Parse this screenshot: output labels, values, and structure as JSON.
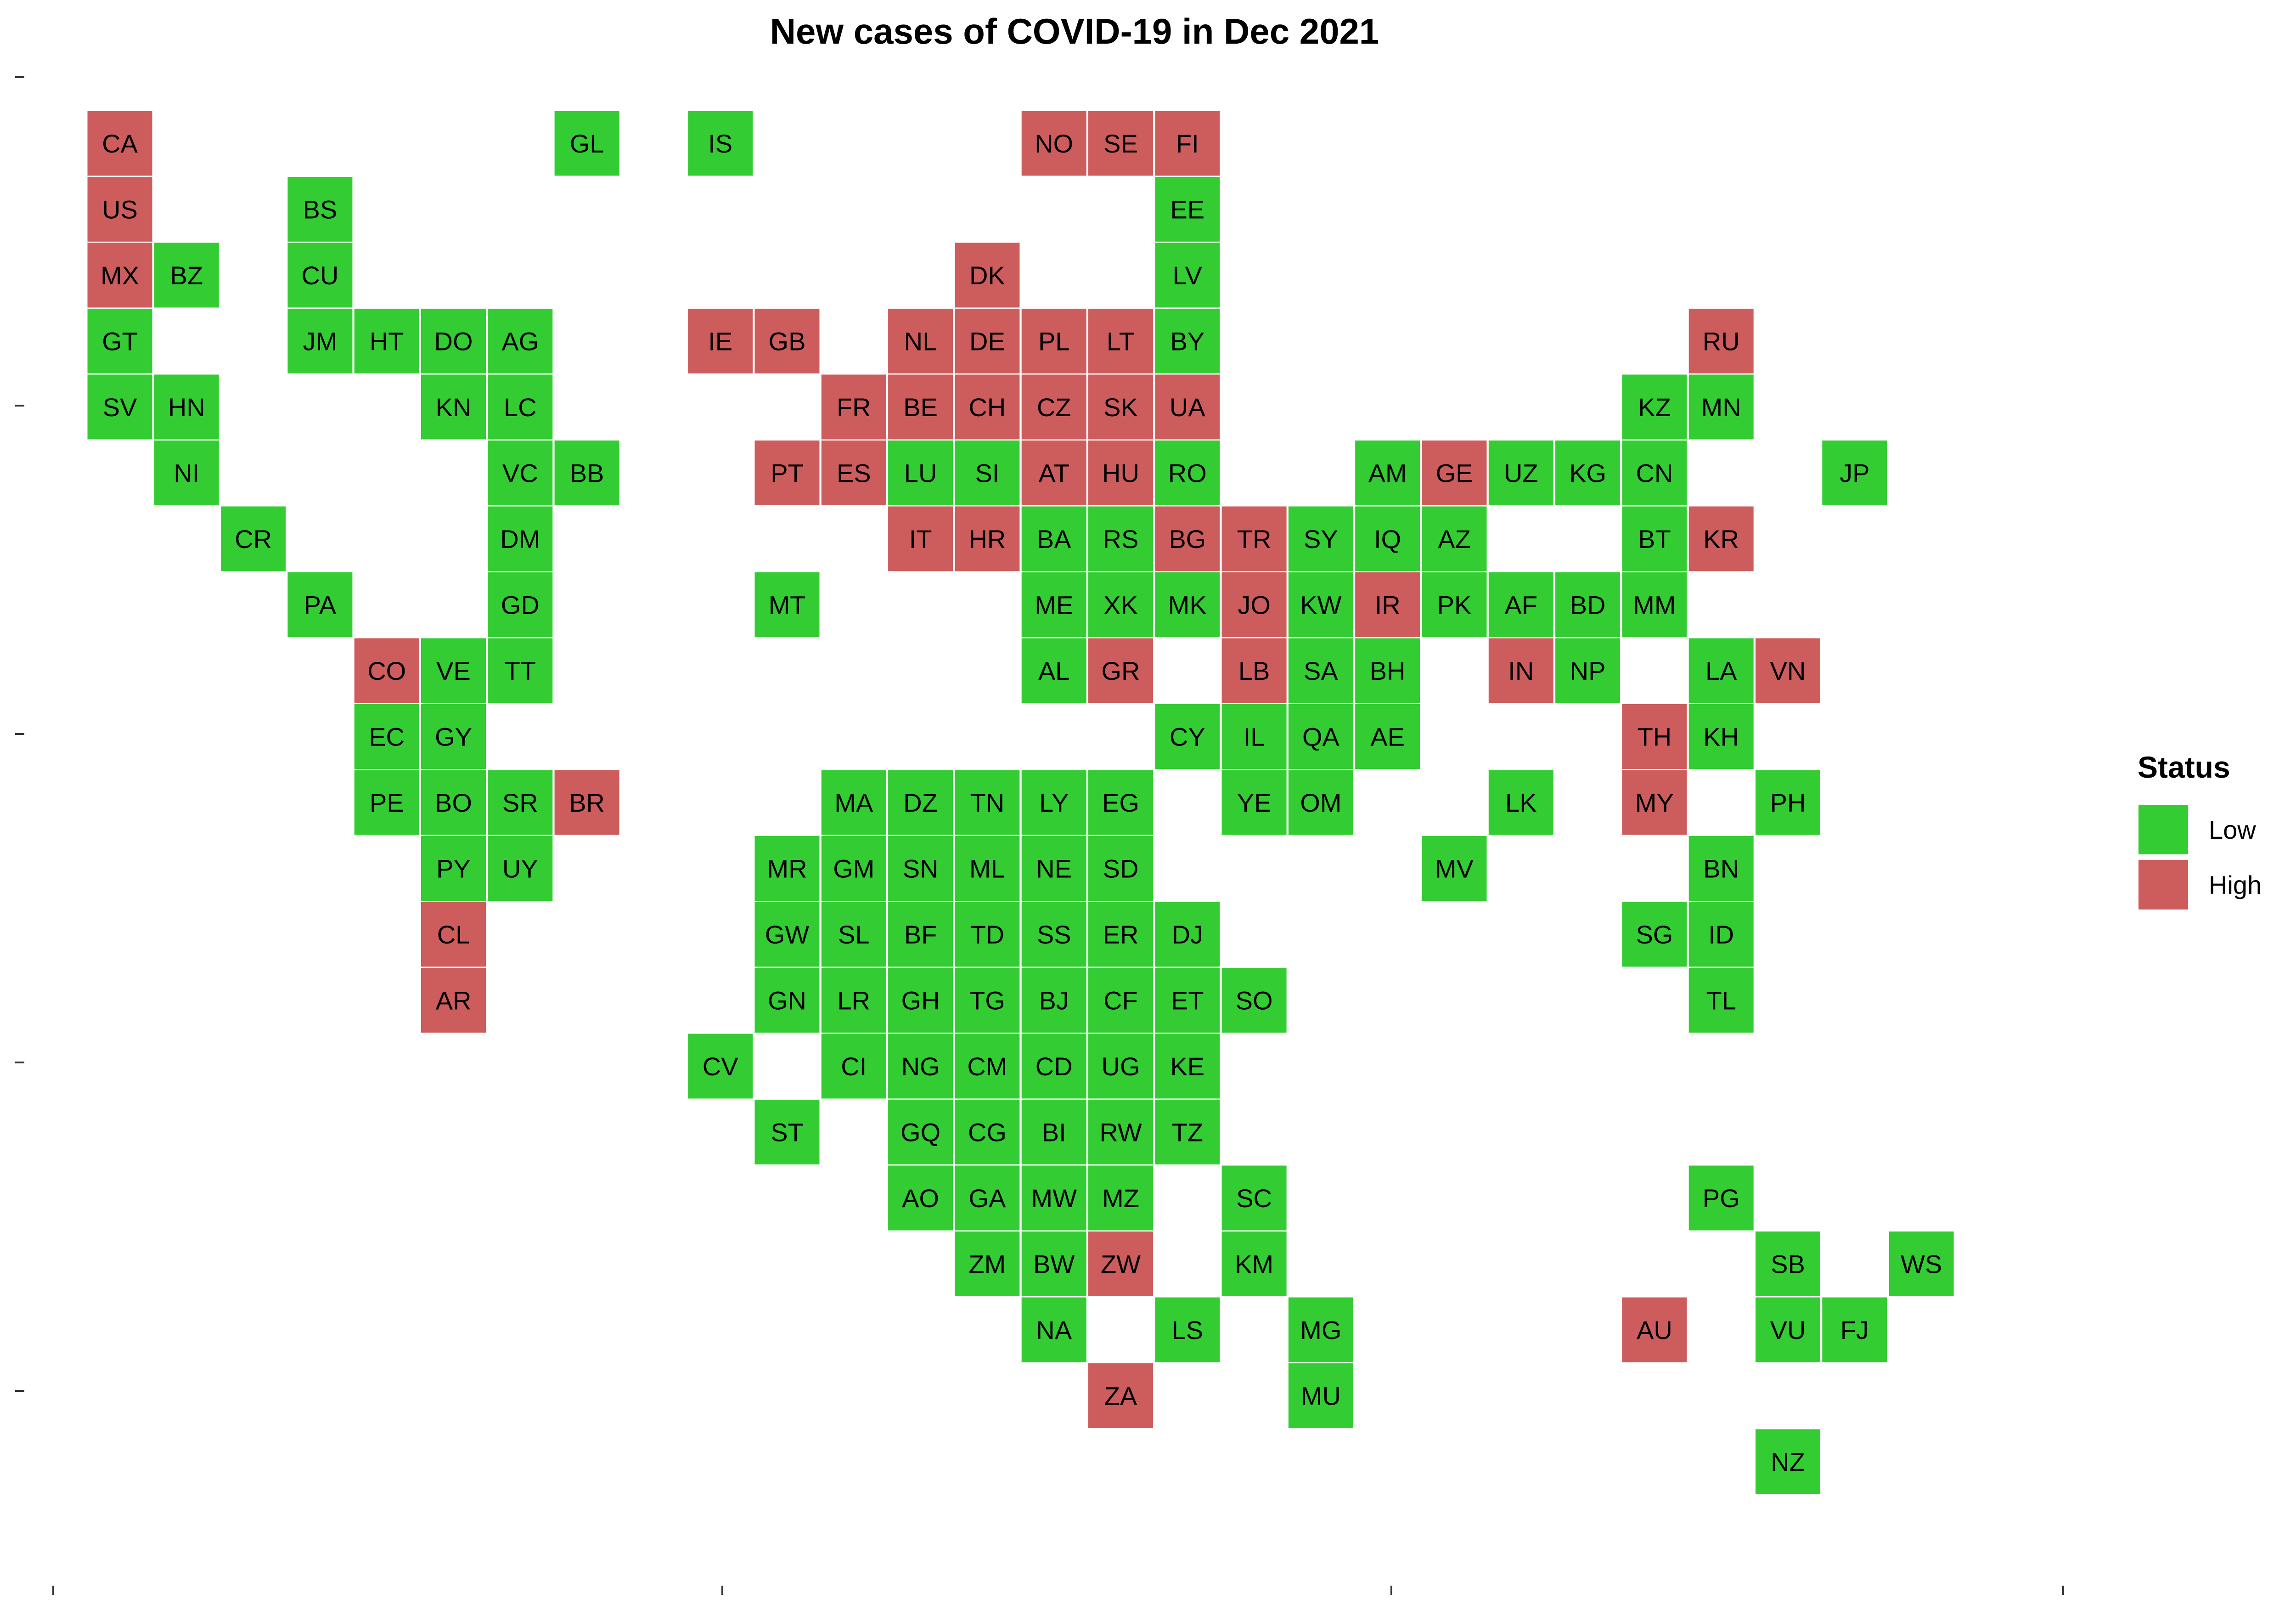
{
  "title": "New cases of COVID-19 in Dec 2021",
  "legend": {
    "title": "Status",
    "items": [
      {
        "label": "Low",
        "color": "#33cc33"
      },
      {
        "label": "High",
        "color": "#cd5c5c"
      }
    ]
  },
  "chart_data": {
    "type": "heatmap",
    "title": "New cases of COVID-19 in Dec 2021",
    "grid": false,
    "legend_position": "right",
    "status_colors": {
      "Low": "#33cc33",
      "High": "#cd5c5c"
    },
    "cells": [
      {
        "code": "CA",
        "col": 1,
        "row": 1,
        "status": "High"
      },
      {
        "code": "GL",
        "col": 8,
        "row": 1,
        "status": "Low"
      },
      {
        "code": "IS",
        "col": 10,
        "row": 1,
        "status": "Low"
      },
      {
        "code": "NO",
        "col": 15,
        "row": 1,
        "status": "High"
      },
      {
        "code": "SE",
        "col": 16,
        "row": 1,
        "status": "High"
      },
      {
        "code": "FI",
        "col": 17,
        "row": 1,
        "status": "High"
      },
      {
        "code": "US",
        "col": 1,
        "row": 2,
        "status": "High"
      },
      {
        "code": "BS",
        "col": 4,
        "row": 2,
        "status": "Low"
      },
      {
        "code": "EE",
        "col": 17,
        "row": 2,
        "status": "Low"
      },
      {
        "code": "MX",
        "col": 1,
        "row": 3,
        "status": "High"
      },
      {
        "code": "BZ",
        "col": 2,
        "row": 3,
        "status": "Low"
      },
      {
        "code": "CU",
        "col": 4,
        "row": 3,
        "status": "Low"
      },
      {
        "code": "DK",
        "col": 14,
        "row": 3,
        "status": "High"
      },
      {
        "code": "LV",
        "col": 17,
        "row": 3,
        "status": "Low"
      },
      {
        "code": "GT",
        "col": 1,
        "row": 4,
        "status": "Low"
      },
      {
        "code": "JM",
        "col": 4,
        "row": 4,
        "status": "Low"
      },
      {
        "code": "HT",
        "col": 5,
        "row": 4,
        "status": "Low"
      },
      {
        "code": "DO",
        "col": 6,
        "row": 4,
        "status": "Low"
      },
      {
        "code": "AG",
        "col": 7,
        "row": 4,
        "status": "Low"
      },
      {
        "code": "IE",
        "col": 10,
        "row": 4,
        "status": "High"
      },
      {
        "code": "GB",
        "col": 11,
        "row": 4,
        "status": "High"
      },
      {
        "code": "NL",
        "col": 13,
        "row": 4,
        "status": "High"
      },
      {
        "code": "DE",
        "col": 14,
        "row": 4,
        "status": "High"
      },
      {
        "code": "PL",
        "col": 15,
        "row": 4,
        "status": "High"
      },
      {
        "code": "LT",
        "col": 16,
        "row": 4,
        "status": "High"
      },
      {
        "code": "BY",
        "col": 17,
        "row": 4,
        "status": "Low"
      },
      {
        "code": "RU",
        "col": 25,
        "row": 4,
        "status": "High"
      },
      {
        "code": "SV",
        "col": 1,
        "row": 5,
        "status": "Low"
      },
      {
        "code": "HN",
        "col": 2,
        "row": 5,
        "status": "Low"
      },
      {
        "code": "KN",
        "col": 6,
        "row": 5,
        "status": "Low"
      },
      {
        "code": "LC",
        "col": 7,
        "row": 5,
        "status": "Low"
      },
      {
        "code": "FR",
        "col": 12,
        "row": 5,
        "status": "High"
      },
      {
        "code": "BE",
        "col": 13,
        "row": 5,
        "status": "High"
      },
      {
        "code": "CH",
        "col": 14,
        "row": 5,
        "status": "High"
      },
      {
        "code": "CZ",
        "col": 15,
        "row": 5,
        "status": "High"
      },
      {
        "code": "SK",
        "col": 16,
        "row": 5,
        "status": "High"
      },
      {
        "code": "UA",
        "col": 17,
        "row": 5,
        "status": "High"
      },
      {
        "code": "KZ",
        "col": 24,
        "row": 5,
        "status": "Low"
      },
      {
        "code": "MN",
        "col": 25,
        "row": 5,
        "status": "Low"
      },
      {
        "code": "NI",
        "col": 2,
        "row": 6,
        "status": "Low"
      },
      {
        "code": "VC",
        "col": 7,
        "row": 6,
        "status": "Low"
      },
      {
        "code": "BB",
        "col": 8,
        "row": 6,
        "status": "Low"
      },
      {
        "code": "PT",
        "col": 11,
        "row": 6,
        "status": "High"
      },
      {
        "code": "ES",
        "col": 12,
        "row": 6,
        "status": "High"
      },
      {
        "code": "LU",
        "col": 13,
        "row": 6,
        "status": "Low"
      },
      {
        "code": "SI",
        "col": 14,
        "row": 6,
        "status": "Low"
      },
      {
        "code": "AT",
        "col": 15,
        "row": 6,
        "status": "High"
      },
      {
        "code": "HU",
        "col": 16,
        "row": 6,
        "status": "High"
      },
      {
        "code": "RO",
        "col": 17,
        "row": 6,
        "status": "Low"
      },
      {
        "code": "AM",
        "col": 20,
        "row": 6,
        "status": "Low"
      },
      {
        "code": "GE",
        "col": 21,
        "row": 6,
        "status": "High"
      },
      {
        "code": "UZ",
        "col": 22,
        "row": 6,
        "status": "Low"
      },
      {
        "code": "KG",
        "col": 23,
        "row": 6,
        "status": "Low"
      },
      {
        "code": "CN",
        "col": 24,
        "row": 6,
        "status": "Low"
      },
      {
        "code": "JP",
        "col": 27,
        "row": 6,
        "status": "Low"
      },
      {
        "code": "CR",
        "col": 3,
        "row": 7,
        "status": "Low"
      },
      {
        "code": "DM",
        "col": 7,
        "row": 7,
        "status": "Low"
      },
      {
        "code": "IT",
        "col": 13,
        "row": 7,
        "status": "High"
      },
      {
        "code": "HR",
        "col": 14,
        "row": 7,
        "status": "High"
      },
      {
        "code": "BA",
        "col": 15,
        "row": 7,
        "status": "Low"
      },
      {
        "code": "RS",
        "col": 16,
        "row": 7,
        "status": "Low"
      },
      {
        "code": "BG",
        "col": 17,
        "row": 7,
        "status": "High"
      },
      {
        "code": "TR",
        "col": 18,
        "row": 7,
        "status": "High"
      },
      {
        "code": "SY",
        "col": 19,
        "row": 7,
        "status": "Low"
      },
      {
        "code": "IQ",
        "col": 20,
        "row": 7,
        "status": "Low"
      },
      {
        "code": "AZ",
        "col": 21,
        "row": 7,
        "status": "Low"
      },
      {
        "code": "BT",
        "col": 24,
        "row": 7,
        "status": "Low"
      },
      {
        "code": "KR",
        "col": 25,
        "row": 7,
        "status": "High"
      },
      {
        "code": "PA",
        "col": 4,
        "row": 8,
        "status": "Low"
      },
      {
        "code": "GD",
        "col": 7,
        "row": 8,
        "status": "Low"
      },
      {
        "code": "MT",
        "col": 11,
        "row": 8,
        "status": "Low"
      },
      {
        "code": "ME",
        "col": 15,
        "row": 8,
        "status": "Low"
      },
      {
        "code": "XK",
        "col": 16,
        "row": 8,
        "status": "Low"
      },
      {
        "code": "MK",
        "col": 17,
        "row": 8,
        "status": "Low"
      },
      {
        "code": "JO",
        "col": 18,
        "row": 8,
        "status": "High"
      },
      {
        "code": "KW",
        "col": 19,
        "row": 8,
        "status": "Low"
      },
      {
        "code": "IR",
        "col": 20,
        "row": 8,
        "status": "High"
      },
      {
        "code": "PK",
        "col": 21,
        "row": 8,
        "status": "Low"
      },
      {
        "code": "AF",
        "col": 22,
        "row": 8,
        "status": "Low"
      },
      {
        "code": "BD",
        "col": 23,
        "row": 8,
        "status": "Low"
      },
      {
        "code": "MM",
        "col": 24,
        "row": 8,
        "status": "Low"
      },
      {
        "code": "CO",
        "col": 5,
        "row": 9,
        "status": "High"
      },
      {
        "code": "VE",
        "col": 6,
        "row": 9,
        "status": "Low"
      },
      {
        "code": "TT",
        "col": 7,
        "row": 9,
        "status": "Low"
      },
      {
        "code": "AL",
        "col": 15,
        "row": 9,
        "status": "Low"
      },
      {
        "code": "GR",
        "col": 16,
        "row": 9,
        "status": "High"
      },
      {
        "code": "LB",
        "col": 18,
        "row": 9,
        "status": "High"
      },
      {
        "code": "SA",
        "col": 19,
        "row": 9,
        "status": "Low"
      },
      {
        "code": "BH",
        "col": 20,
        "row": 9,
        "status": "Low"
      },
      {
        "code": "IN",
        "col": 22,
        "row": 9,
        "status": "High"
      },
      {
        "code": "NP",
        "col": 23,
        "row": 9,
        "status": "Low"
      },
      {
        "code": "LA",
        "col": 25,
        "row": 9,
        "status": "Low"
      },
      {
        "code": "VN",
        "col": 26,
        "row": 9,
        "status": "High"
      },
      {
        "code": "EC",
        "col": 5,
        "row": 10,
        "status": "Low"
      },
      {
        "code": "GY",
        "col": 6,
        "row": 10,
        "status": "Low"
      },
      {
        "code": "CY",
        "col": 17,
        "row": 10,
        "status": "Low"
      },
      {
        "code": "IL",
        "col": 18,
        "row": 10,
        "status": "Low"
      },
      {
        "code": "QA",
        "col": 19,
        "row": 10,
        "status": "Low"
      },
      {
        "code": "AE",
        "col": 20,
        "row": 10,
        "status": "Low"
      },
      {
        "code": "TH",
        "col": 24,
        "row": 10,
        "status": "High"
      },
      {
        "code": "KH",
        "col": 25,
        "row": 10,
        "status": "Low"
      },
      {
        "code": "PE",
        "col": 5,
        "row": 11,
        "status": "Low"
      },
      {
        "code": "BO",
        "col": 6,
        "row": 11,
        "status": "Low"
      },
      {
        "code": "SR",
        "col": 7,
        "row": 11,
        "status": "Low"
      },
      {
        "code": "BR",
        "col": 8,
        "row": 11,
        "status": "High"
      },
      {
        "code": "MA",
        "col": 12,
        "row": 11,
        "status": "Low"
      },
      {
        "code": "DZ",
        "col": 13,
        "row": 11,
        "status": "Low"
      },
      {
        "code": "TN",
        "col": 14,
        "row": 11,
        "status": "Low"
      },
      {
        "code": "LY",
        "col": 15,
        "row": 11,
        "status": "Low"
      },
      {
        "code": "EG",
        "col": 16,
        "row": 11,
        "status": "Low"
      },
      {
        "code": "YE",
        "col": 18,
        "row": 11,
        "status": "Low"
      },
      {
        "code": "OM",
        "col": 19,
        "row": 11,
        "status": "Low"
      },
      {
        "code": "LK",
        "col": 22,
        "row": 11,
        "status": "Low"
      },
      {
        "code": "MY",
        "col": 24,
        "row": 11,
        "status": "High"
      },
      {
        "code": "PH",
        "col": 26,
        "row": 11,
        "status": "Low"
      },
      {
        "code": "PY",
        "col": 6,
        "row": 12,
        "status": "Low"
      },
      {
        "code": "UY",
        "col": 7,
        "row": 12,
        "status": "Low"
      },
      {
        "code": "MR",
        "col": 11,
        "row": 12,
        "status": "Low"
      },
      {
        "code": "GM",
        "col": 12,
        "row": 12,
        "status": "Low"
      },
      {
        "code": "SN",
        "col": 13,
        "row": 12,
        "status": "Low"
      },
      {
        "code": "ML",
        "col": 14,
        "row": 12,
        "status": "Low"
      },
      {
        "code": "NE",
        "col": 15,
        "row": 12,
        "status": "Low"
      },
      {
        "code": "SD",
        "col": 16,
        "row": 12,
        "status": "Low"
      },
      {
        "code": "MV",
        "col": 21,
        "row": 12,
        "status": "Low"
      },
      {
        "code": "BN",
        "col": 25,
        "row": 12,
        "status": "Low"
      },
      {
        "code": "CL",
        "col": 6,
        "row": 13,
        "status": "High"
      },
      {
        "code": "GW",
        "col": 11,
        "row": 13,
        "status": "Low"
      },
      {
        "code": "SL",
        "col": 12,
        "row": 13,
        "status": "Low"
      },
      {
        "code": "BF",
        "col": 13,
        "row": 13,
        "status": "Low"
      },
      {
        "code": "TD",
        "col": 14,
        "row": 13,
        "status": "Low"
      },
      {
        "code": "SS",
        "col": 15,
        "row": 13,
        "status": "Low"
      },
      {
        "code": "ER",
        "col": 16,
        "row": 13,
        "status": "Low"
      },
      {
        "code": "DJ",
        "col": 17,
        "row": 13,
        "status": "Low"
      },
      {
        "code": "SG",
        "col": 24,
        "row": 13,
        "status": "Low"
      },
      {
        "code": "ID",
        "col": 25,
        "row": 13,
        "status": "Low"
      },
      {
        "code": "AR",
        "col": 6,
        "row": 14,
        "status": "High"
      },
      {
        "code": "GN",
        "col": 11,
        "row": 14,
        "status": "Low"
      },
      {
        "code": "LR",
        "col": 12,
        "row": 14,
        "status": "Low"
      },
      {
        "code": "GH",
        "col": 13,
        "row": 14,
        "status": "Low"
      },
      {
        "code": "TG",
        "col": 14,
        "row": 14,
        "status": "Low"
      },
      {
        "code": "BJ",
        "col": 15,
        "row": 14,
        "status": "Low"
      },
      {
        "code": "CF",
        "col": 16,
        "row": 14,
        "status": "Low"
      },
      {
        "code": "ET",
        "col": 17,
        "row": 14,
        "status": "Low"
      },
      {
        "code": "SO",
        "col": 18,
        "row": 14,
        "status": "Low"
      },
      {
        "code": "TL",
        "col": 25,
        "row": 14,
        "status": "Low"
      },
      {
        "code": "CV",
        "col": 10,
        "row": 15,
        "status": "Low"
      },
      {
        "code": "CI",
        "col": 12,
        "row": 15,
        "status": "Low"
      },
      {
        "code": "NG",
        "col": 13,
        "row": 15,
        "status": "Low"
      },
      {
        "code": "CM",
        "col": 14,
        "row": 15,
        "status": "Low"
      },
      {
        "code": "CD",
        "col": 15,
        "row": 15,
        "status": "Low"
      },
      {
        "code": "UG",
        "col": 16,
        "row": 15,
        "status": "Low"
      },
      {
        "code": "KE",
        "col": 17,
        "row": 15,
        "status": "Low"
      },
      {
        "code": "ST",
        "col": 11,
        "row": 16,
        "status": "Low"
      },
      {
        "code": "GQ",
        "col": 13,
        "row": 16,
        "status": "Low"
      },
      {
        "code": "CG",
        "col": 14,
        "row": 16,
        "status": "Low"
      },
      {
        "code": "BI",
        "col": 15,
        "row": 16,
        "status": "Low"
      },
      {
        "code": "RW",
        "col": 16,
        "row": 16,
        "status": "Low"
      },
      {
        "code": "TZ",
        "col": 17,
        "row": 16,
        "status": "Low"
      },
      {
        "code": "AO",
        "col": 13,
        "row": 17,
        "status": "Low"
      },
      {
        "code": "GA",
        "col": 14,
        "row": 17,
        "status": "Low"
      },
      {
        "code": "MW",
        "col": 15,
        "row": 17,
        "status": "Low"
      },
      {
        "code": "MZ",
        "col": 16,
        "row": 17,
        "status": "Low"
      },
      {
        "code": "SC",
        "col": 18,
        "row": 17,
        "status": "Low"
      },
      {
        "code": "PG",
        "col": 25,
        "row": 17,
        "status": "Low"
      },
      {
        "code": "ZM",
        "col": 14,
        "row": 18,
        "status": "Low"
      },
      {
        "code": "BW",
        "col": 15,
        "row": 18,
        "status": "Low"
      },
      {
        "code": "ZW",
        "col": 16,
        "row": 18,
        "status": "High"
      },
      {
        "code": "KM",
        "col": 18,
        "row": 18,
        "status": "Low"
      },
      {
        "code": "SB",
        "col": 26,
        "row": 18,
        "status": "Low"
      },
      {
        "code": "WS",
        "col": 28,
        "row": 18,
        "status": "Low"
      },
      {
        "code": "NA",
        "col": 15,
        "row": 19,
        "status": "Low"
      },
      {
        "code": "LS",
        "col": 17,
        "row": 19,
        "status": "Low"
      },
      {
        "code": "MG",
        "col": 19,
        "row": 19,
        "status": "Low"
      },
      {
        "code": "AU",
        "col": 24,
        "row": 19,
        "status": "High"
      },
      {
        "code": "VU",
        "col": 26,
        "row": 19,
        "status": "Low"
      },
      {
        "code": "FJ",
        "col": 27,
        "row": 19,
        "status": "Low"
      },
      {
        "code": "ZA",
        "col": 16,
        "row": 20,
        "status": "High"
      },
      {
        "code": "MU",
        "col": 19,
        "row": 20,
        "status": "Low"
      },
      {
        "code": "NZ",
        "col": 26,
        "row": 21,
        "status": "Low"
      }
    ]
  }
}
